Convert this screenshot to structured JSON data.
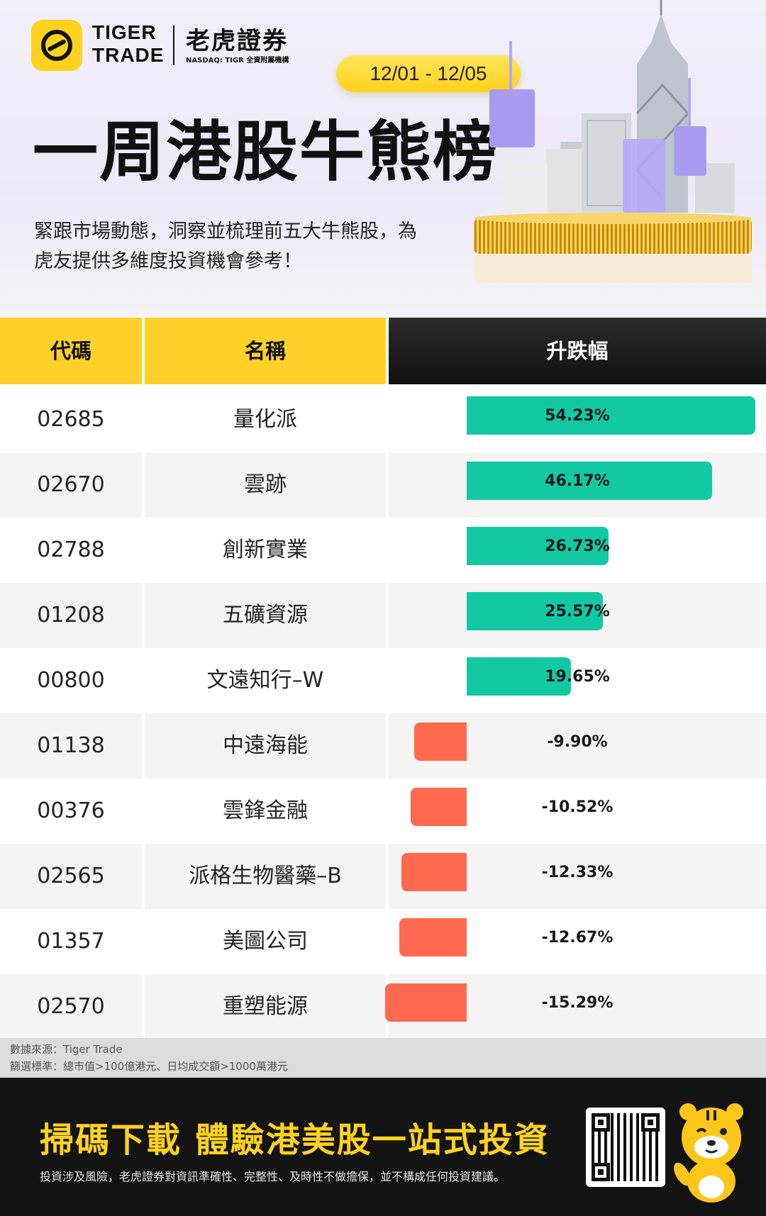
{
  "brand": {
    "en_line1": "TIGER",
    "en_line2": "TRADE",
    "cn": "老虎證券",
    "sub": "NASDAQ: TIGR 全資附屬機構"
  },
  "date_range": "12/01 - 12/05",
  "title": "一周港股牛熊榜",
  "subtitle_line1": "緊跟市場動態，洞察並梳理前五大牛熊股，為",
  "subtitle_line2": "虎友提供多維度投資機會參考！",
  "table": {
    "headers": {
      "code": "代碼",
      "name": "名稱",
      "change": "升跌幅"
    },
    "rows": [
      {
        "code": "02685",
        "name": "量化派",
        "change": "54.23%",
        "value": 54.23
      },
      {
        "code": "02670",
        "name": "雲跡",
        "change": "46.17%",
        "value": 46.17
      },
      {
        "code": "02788",
        "name": "創新實業",
        "change": "26.73%",
        "value": 26.73
      },
      {
        "code": "01208",
        "name": "五礦資源",
        "change": "25.57%",
        "value": 25.57
      },
      {
        "code": "00800",
        "name": "文遠知行–W",
        "change": "19.65%",
        "value": 19.65
      },
      {
        "code": "01138",
        "name": "中遠海能",
        "change": "-9.90%",
        "value": -9.9
      },
      {
        "code": "00376",
        "name": "雲鋒金融",
        "change": "-10.52%",
        "value": -10.52
      },
      {
        "code": "02565",
        "name": "派格生物醫藥–B",
        "change": "-12.33%",
        "value": -12.33
      },
      {
        "code": "01357",
        "name": "美圖公司",
        "change": "-12.67%",
        "value": -12.67
      },
      {
        "code": "02570",
        "name": "重塑能源",
        "change": "-15.29%",
        "value": -15.29
      }
    ]
  },
  "note": {
    "source": "數據來源：Tiger Trade",
    "criteria": "篩選標準：總市值>100億港元、日均成交額>1000萬港元"
  },
  "banner": {
    "cta": "掃碼下載 體驗港美股一站式投資",
    "disclaimer": "投資涉及風險，老虎證券對資訊準確性、完整性、及時性不做擔保，並不構成任何投資建議。"
  },
  "colors": {
    "brand_yellow": "#ffd02a",
    "rise_green": "#12c9a4",
    "fall_red": "#ff6a4f",
    "dark": "#131313"
  }
}
